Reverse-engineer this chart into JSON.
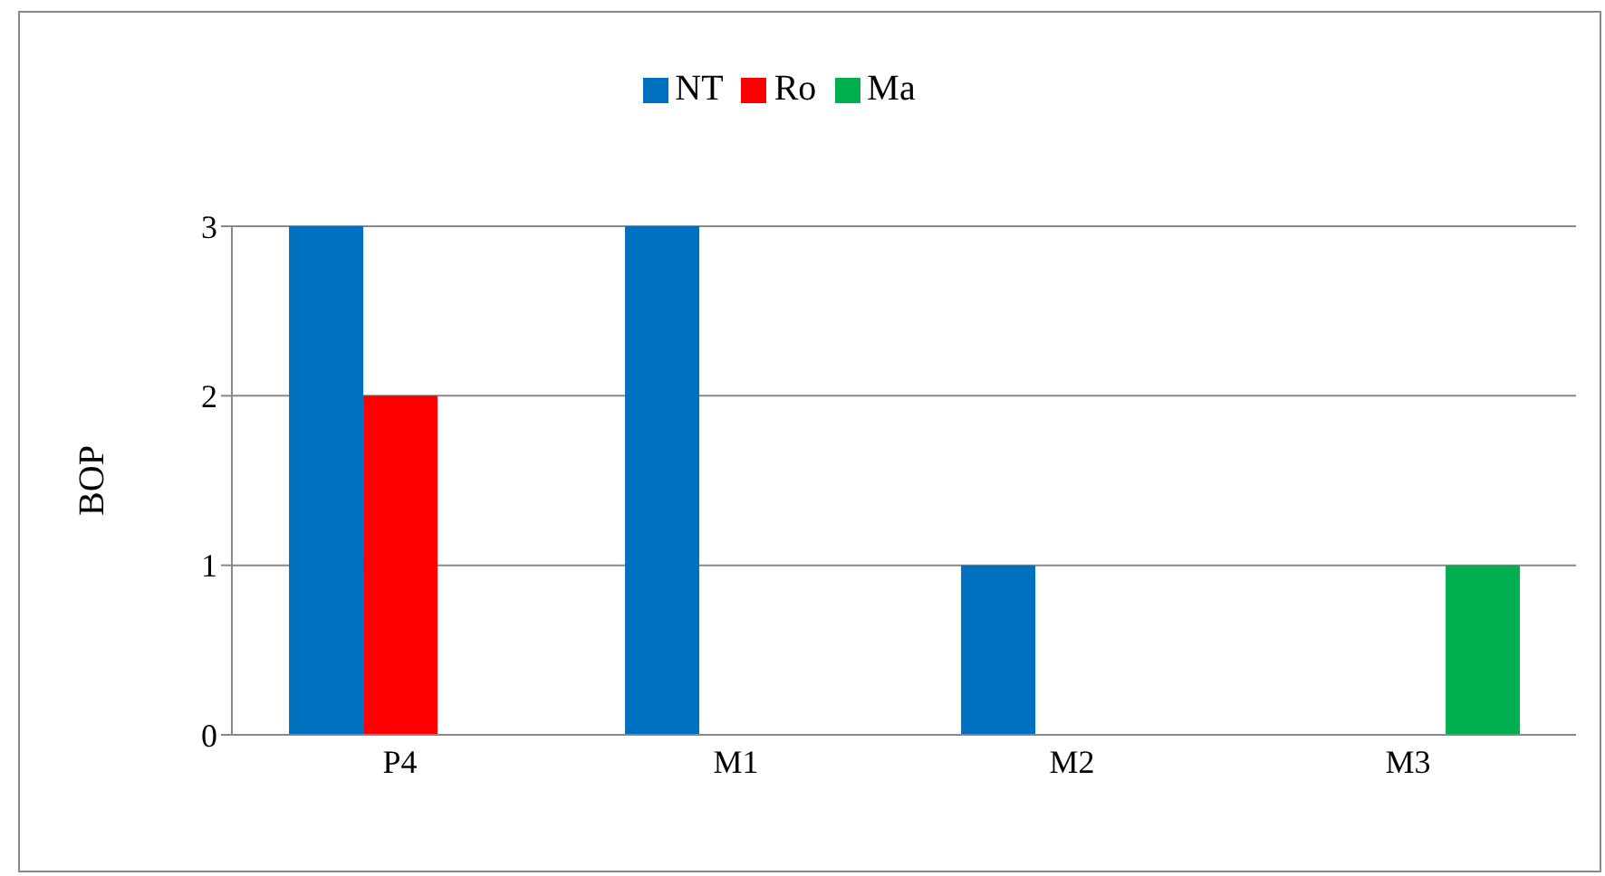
{
  "chart_data": {
    "type": "bar",
    "ylabel": "BOP",
    "categories": [
      "P4",
      "M1",
      "M2",
      "M3"
    ],
    "series": [
      {
        "name": "NT",
        "color": "#0070c0",
        "values": [
          3,
          3,
          1,
          0
        ]
      },
      {
        "name": "Ro",
        "color": "#ff0000",
        "values": [
          2,
          0,
          0,
          0
        ]
      },
      {
        "name": "Ma",
        "color": "#00b050",
        "values": [
          0,
          0,
          0,
          1
        ]
      }
    ],
    "ylim": [
      0,
      3
    ],
    "yticks": [
      0,
      1,
      2,
      3
    ],
    "grid": "y",
    "legend": "top"
  }
}
